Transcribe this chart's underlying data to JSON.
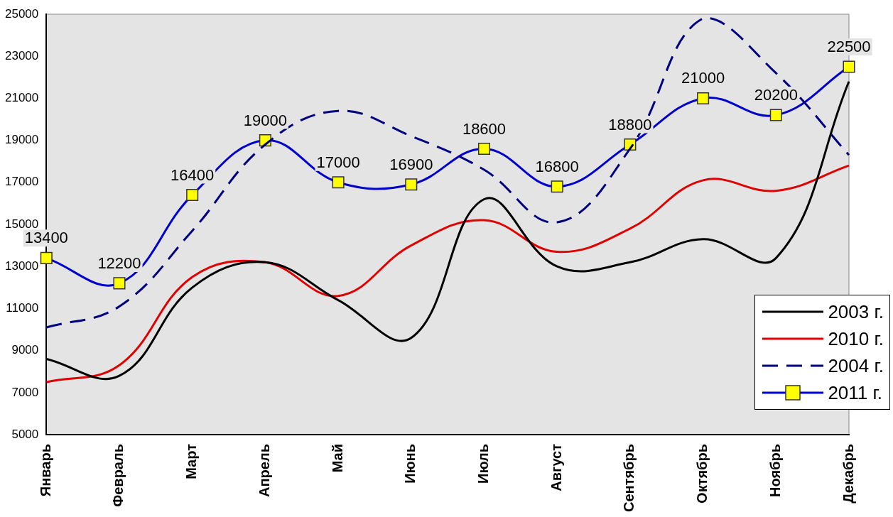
{
  "chart_data": {
    "type": "line",
    "categories": [
      "Январь",
      "Февраль",
      "Март",
      "Апрель",
      "Май",
      "Июнь",
      "Июль",
      "Август",
      "Сентябрь",
      "Октябрь",
      "Ноябрь",
      "Декабрь"
    ],
    "ylim": [
      5000,
      25000
    ],
    "yticks": [
      5000,
      7000,
      9000,
      11000,
      13000,
      15000,
      17000,
      19000,
      21000,
      23000,
      25000
    ],
    "grid": false,
    "legend": "bottom right",
    "series": [
      {
        "name": "2003 г.",
        "color": "#000000",
        "line_style": "solid",
        "marker": "none",
        "values": [
          8600,
          7800,
          12000,
          13200,
          11400,
          9600,
          16200,
          13000,
          13200,
          14300,
          13400,
          21800
        ]
      },
      {
        "name": "2010 г.",
        "color": "#e00000",
        "line_style": "solid",
        "marker": "none",
        "values": [
          7500,
          8300,
          12500,
          13200,
          11600,
          14000,
          15200,
          13700,
          14800,
          17100,
          16600,
          17800
        ]
      },
      {
        "name": "2004 г.",
        "color": "#000080",
        "line_style": "dashed",
        "marker": "none",
        "values": [
          10100,
          11100,
          14700,
          18800,
          20400,
          19200,
          17600,
          15100,
          18600,
          24800,
          22200,
          18300
        ]
      },
      {
        "name": "2011 г.",
        "color": "#0000cc",
        "line_style": "solid",
        "marker": "square",
        "data_labels": true,
        "values": [
          13400,
          12200,
          16400,
          19000,
          17000,
          16900,
          18600,
          16800,
          18800,
          21000,
          20200,
          22500
        ]
      }
    ]
  }
}
